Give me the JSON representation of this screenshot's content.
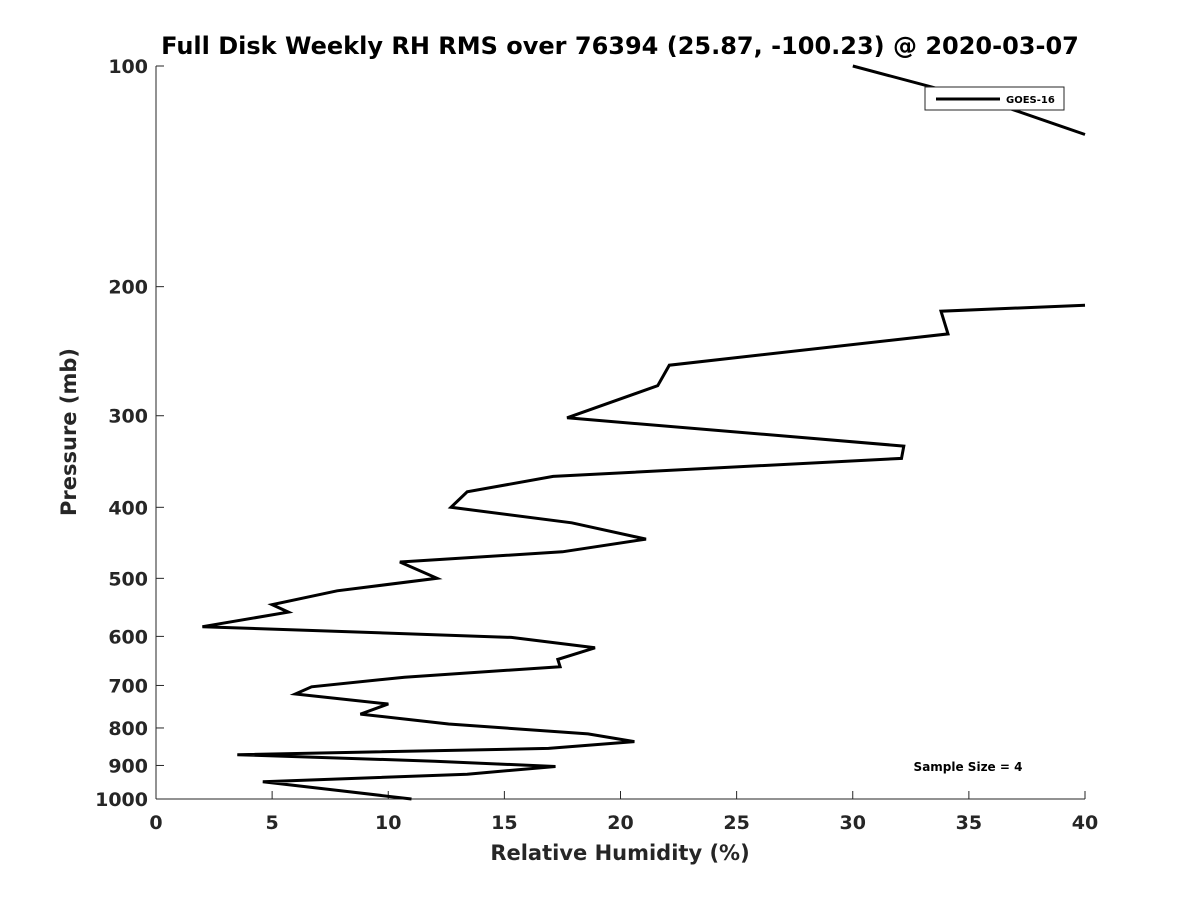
{
  "chart_data": {
    "type": "line",
    "title": "Full Disk Weekly RH RMS over 76394 (25.87, -100.23) @ 2020-03-07",
    "xlabel": "Relative Humidity (%)",
    "ylabel": "Pressure (mb)",
    "xlim": [
      0,
      40
    ],
    "ylim": [
      100,
      1000
    ],
    "yscale": "log",
    "y_reversed": true,
    "grid": false,
    "legend_position": "top-right",
    "x_ticks": [
      0,
      5,
      10,
      15,
      20,
      25,
      30,
      35,
      40
    ],
    "y_ticks": [
      100,
      200,
      300,
      400,
      500,
      600,
      700,
      800,
      900,
      1000
    ],
    "annotation": "Sample Size = 4",
    "series": [
      {
        "name": "GOES-16",
        "color": "#000000",
        "segments": [
          {
            "x": [
              30.0,
              36.3,
              40.0
            ],
            "y": [
              100,
              113,
              124
            ]
          },
          {
            "x": [
              40.0,
              33.8,
              34.1,
              22.1,
              21.6,
              17.7,
              32.2,
              32.1,
              17.1,
              13.4,
              12.7,
              17.9,
              21.1,
              17.5,
              10.5,
              12.1,
              7.8,
              5.0,
              5.7,
              2.0,
              15.3,
              18.9,
              17.3,
              17.4,
              10.7,
              6.7,
              6.0,
              10.0,
              8.8,
              12.6,
              18.6,
              20.6,
              16.9,
              3.5,
              12.0,
              17.2,
              13.4,
              4.6,
              8.0,
              11.0
            ],
            "y": [
              212,
              216,
              232,
              256,
              273,
              302,
              330,
              343,
              363,
              381,
              400,
              420,
              442,
              460,
              475,
              500,
              520,
              543,
              556,
              582,
              602,
              622,
              645,
              660,
              682,
              703,
              719,
              742,
              766,
              790,
              815,
              835,
              853,
              870,
              888,
              903,
              925,
              947,
              975,
              1000
            ]
          }
        ]
      }
    ]
  }
}
